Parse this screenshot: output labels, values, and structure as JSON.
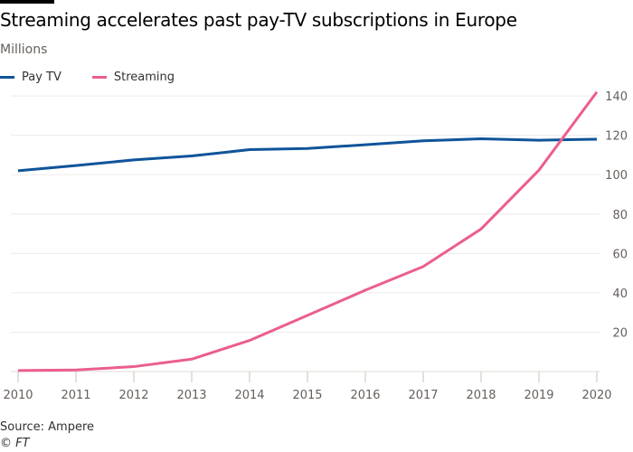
{
  "chart_data": {
    "type": "line",
    "title": "Streaming accelerates past pay-TV subscriptions in Europe",
    "subtitle": "Millions",
    "x": [
      2010,
      2011,
      2012,
      2013,
      2014,
      2015,
      2016,
      2017,
      2018,
      2019,
      2020
    ],
    "xtick_labels": [
      "2010",
      "2011",
      "2012",
      "2013",
      "2014",
      "2015",
      "2016",
      "2017",
      "2018",
      "2019",
      "2020"
    ],
    "ytick_labels": [
      "20",
      "40",
      "60",
      "80",
      "100",
      "120",
      "140"
    ],
    "yticks": [
      20,
      40,
      60,
      80,
      100,
      120,
      140
    ],
    "ylim": [
      0,
      142
    ],
    "xlim": [
      2010,
      2020
    ],
    "y_axis_side": "right",
    "grid": "horizontal",
    "legend_placement": "top-left",
    "series": [
      {
        "name": "Pay TV",
        "color": "#0f5499",
        "values": [
          102,
          104.6,
          107.5,
          109.5,
          112.7,
          113.3,
          115.2,
          117.2,
          118.2,
          117.5,
          118
        ]
      },
      {
        "name": "Streaming",
        "color": "#eb5e8d",
        "values": [
          0.5,
          0.8,
          2.5,
          6.3,
          15.8,
          28.5,
          41.3,
          53.3,
          72.4,
          102.3,
          142
        ]
      }
    ]
  },
  "footer": {
    "source": "Source: Ampere",
    "copyright": "© FT"
  }
}
